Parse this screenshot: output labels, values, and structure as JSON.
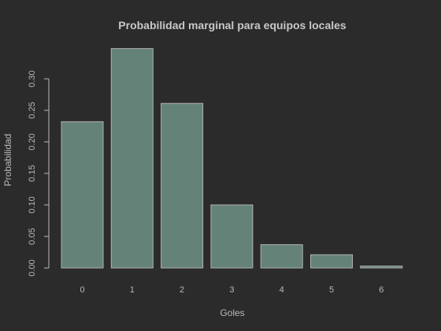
{
  "chart_data": {
    "type": "bar",
    "title": "Probabilidad marginal para equipos locales",
    "xlabel": "Goles",
    "ylabel": "Probabilidad",
    "categories": [
      "0",
      "1",
      "2",
      "3",
      "4",
      "5",
      "6"
    ],
    "values": [
      0.232,
      0.348,
      0.261,
      0.1,
      0.037,
      0.021,
      0.003
    ],
    "ylim": [
      0,
      0.35
    ],
    "yticks": [
      "0.00",
      "0.05",
      "0.10",
      "0.15",
      "0.20",
      "0.25",
      "0.30"
    ],
    "grid": false,
    "colors": {
      "bar": "#648278",
      "bar_border": "#b0b0b0",
      "background": "#2b2b2b",
      "text": "#c8c8c8"
    }
  }
}
